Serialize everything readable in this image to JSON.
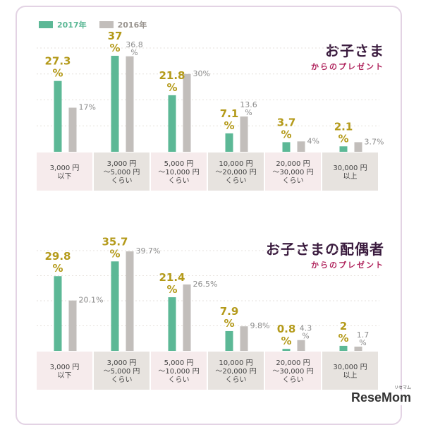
{
  "legend": [
    {
      "label": "2017年",
      "color": "#5cb896"
    },
    {
      "label": "2016年",
      "color": "#c2bebb"
    }
  ],
  "chart_data": [
    {
      "type": "bar",
      "title": "お子さま",
      "subtitle": "からのプレゼント",
      "categories": [
        "3,000 円\n以下",
        "3,000 円\n～5,000 円\nくらい",
        "5,000 円\n～10,000 円\nくらい",
        "10,000 円\n～20,000 円\nくらい",
        "20,000 円\n～30,000 円\nくらい",
        "30,000 円\n以上"
      ],
      "series": [
        {
          "name": "2017年",
          "values": [
            27.3,
            37,
            21.8,
            7.1,
            3.7,
            2.1
          ],
          "labels": [
            "27.3\n%",
            "37\n%",
            "21.8\n%",
            "7.1\n%",
            "3.7\n%",
            "2.1\n%"
          ]
        },
        {
          "name": "2016年",
          "values": [
            17,
            36.8,
            30,
            13.6,
            4,
            3.7
          ],
          "labels": [
            "17%",
            "36.8\n%",
            "30%",
            "13.6\n%",
            "4%",
            "3.7%"
          ]
        }
      ],
      "ylim": [
        0,
        40
      ],
      "grid": true
    },
    {
      "type": "bar",
      "title": "お子さまの配偶者",
      "subtitle": "からのプレゼント",
      "categories": [
        "3,000 円\n以下",
        "3,000 円\n～5,000 円\nくらい",
        "5,000 円\n～10,000 円\nくらい",
        "10,000 円\n～20,000 円\nくらい",
        "20,000 円\n～30,000 円\nくらい",
        "30,000 円\n以上"
      ],
      "series": [
        {
          "name": "2017年",
          "values": [
            29.8,
            35.7,
            21.4,
            7.9,
            0.8,
            2
          ],
          "labels": [
            "29.8\n%",
            "35.7\n%",
            "21.4\n%",
            "7.9\n%",
            "0.8\n%",
            "2\n%"
          ]
        },
        {
          "name": "2016年",
          "values": [
            20.1,
            39.7,
            26.5,
            9.8,
            4.3,
            1.7
          ],
          "labels": [
            "20.1%",
            "39.7%",
            "26.5%",
            "9.8%",
            "4.3\n%",
            "1.7\n%"
          ]
        }
      ],
      "ylim": [
        0,
        40
      ],
      "grid": true
    }
  ],
  "colors": {
    "series_2017": "#5cb896",
    "series_2016": "#c2bebb",
    "label_2017": "#b49a1a",
    "label_2016": "#8c8c8c",
    "cat_pink": "#f6ebec",
    "cat_gray": "#e7e3df"
  },
  "watermark": "ReseMom",
  "watermark_sub": "リセマム"
}
